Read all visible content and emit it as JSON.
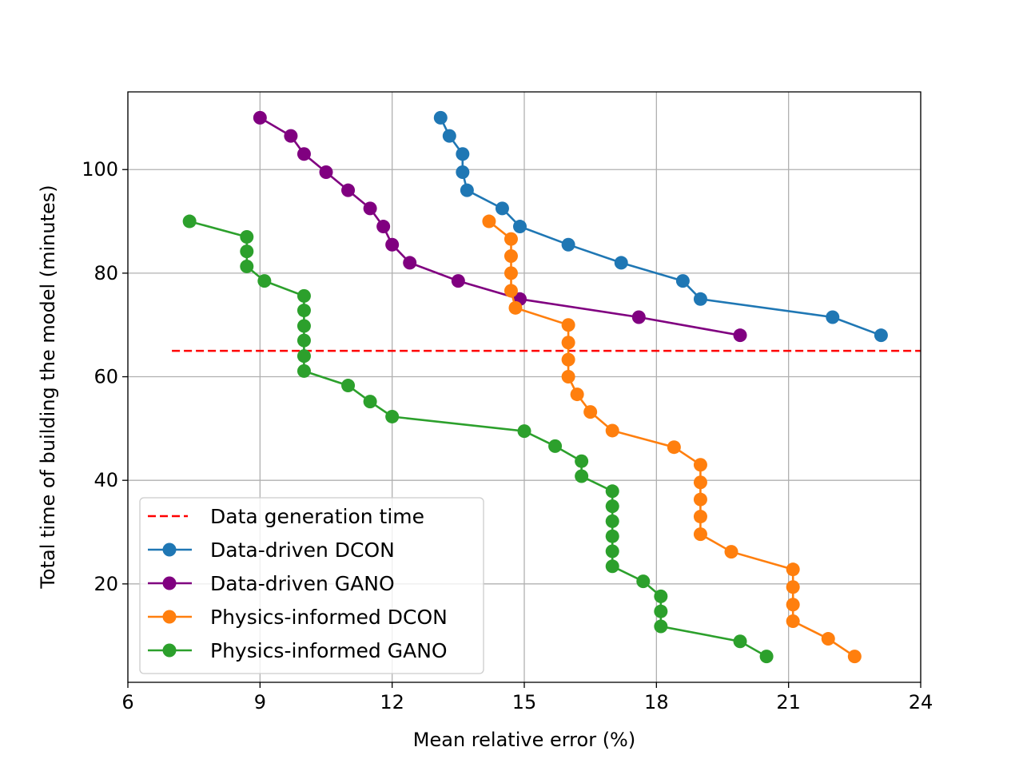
{
  "chart_data": {
    "type": "line",
    "title": "",
    "xlabel": "Mean relative error (%)",
    "ylabel": "Total time of building the model (minutes)",
    "xlim": [
      6,
      24
    ],
    "ylim": [
      1,
      115
    ],
    "xticks": [
      6,
      9,
      12,
      15,
      18,
      21,
      24
    ],
    "yticks": [
      20,
      40,
      60,
      80,
      100
    ],
    "grid": true,
    "legend_position": "lower-left",
    "reference_line": {
      "name": "Data generation time",
      "y": 65,
      "x_range": [
        7,
        24
      ],
      "color": "#ff0000",
      "style": "dashed"
    },
    "series": [
      {
        "name": "Data-driven DCON",
        "color": "#1f77b4",
        "x": [
          13.1,
          13.3,
          13.6,
          13.6,
          13.7,
          14.5,
          14.9,
          16.0,
          17.2,
          18.6,
          19.0,
          22.0,
          23.1
        ],
        "y": [
          110,
          106.5,
          103,
          99.5,
          96,
          92.5,
          89,
          85.5,
          82,
          78.5,
          75,
          71.5,
          68
        ]
      },
      {
        "name": "Data-driven GANO",
        "color": "#800080",
        "x": [
          9.0,
          9.7,
          10.0,
          10.5,
          11.0,
          11.5,
          11.8,
          12.0,
          12.4,
          13.5,
          14.9,
          17.6,
          19.9
        ],
        "y": [
          110,
          106.5,
          103,
          99.5,
          96,
          92.5,
          89,
          85.5,
          82,
          78.5,
          75,
          71.5,
          68
        ]
      },
      {
        "name": "Physics-informed DCON",
        "color": "#ff7f0e",
        "x": [
          14.2,
          14.7,
          14.7,
          14.7,
          14.7,
          14.8,
          16.0,
          16.0,
          16.0,
          16.0,
          16.2,
          16.5,
          17.0,
          18.4,
          19.0,
          19.0,
          19.0,
          19.0,
          19.0,
          19.7,
          21.1,
          21.1,
          21.1,
          21.1,
          21.9,
          22.5
        ],
        "y": [
          90,
          86.6,
          83.3,
          80,
          76.6,
          73.3,
          70,
          66.6,
          63.3,
          60,
          56.6,
          53.2,
          49.6,
          46.4,
          43,
          39.6,
          36.3,
          33,
          29.6,
          26.2,
          22.8,
          19.4,
          16,
          12.8,
          9.4,
          6
        ]
      },
      {
        "name": "Physics-informed GANO",
        "color": "#2ca02c",
        "x": [
          7.4,
          8.7,
          8.7,
          8.7,
          9.1,
          10.0,
          10.0,
          10.0,
          10.0,
          10.0,
          10.0,
          11.0,
          11.5,
          12.0,
          15.0,
          15.7,
          16.3,
          16.3,
          17.0,
          17.0,
          17.0,
          17.0,
          17.0,
          17.0,
          17.7,
          18.1,
          18.1,
          18.1,
          19.9,
          20.5
        ],
        "y": [
          90,
          87,
          84.2,
          81.3,
          78.5,
          75.6,
          72.8,
          69.8,
          67,
          64,
          61.1,
          58.3,
          55.2,
          52.3,
          49.5,
          46.6,
          43.7,
          40.8,
          37.9,
          35,
          32.1,
          29.2,
          26.3,
          23.4,
          20.5,
          17.6,
          14.7,
          11.8,
          8.9,
          6
        ]
      }
    ]
  }
}
